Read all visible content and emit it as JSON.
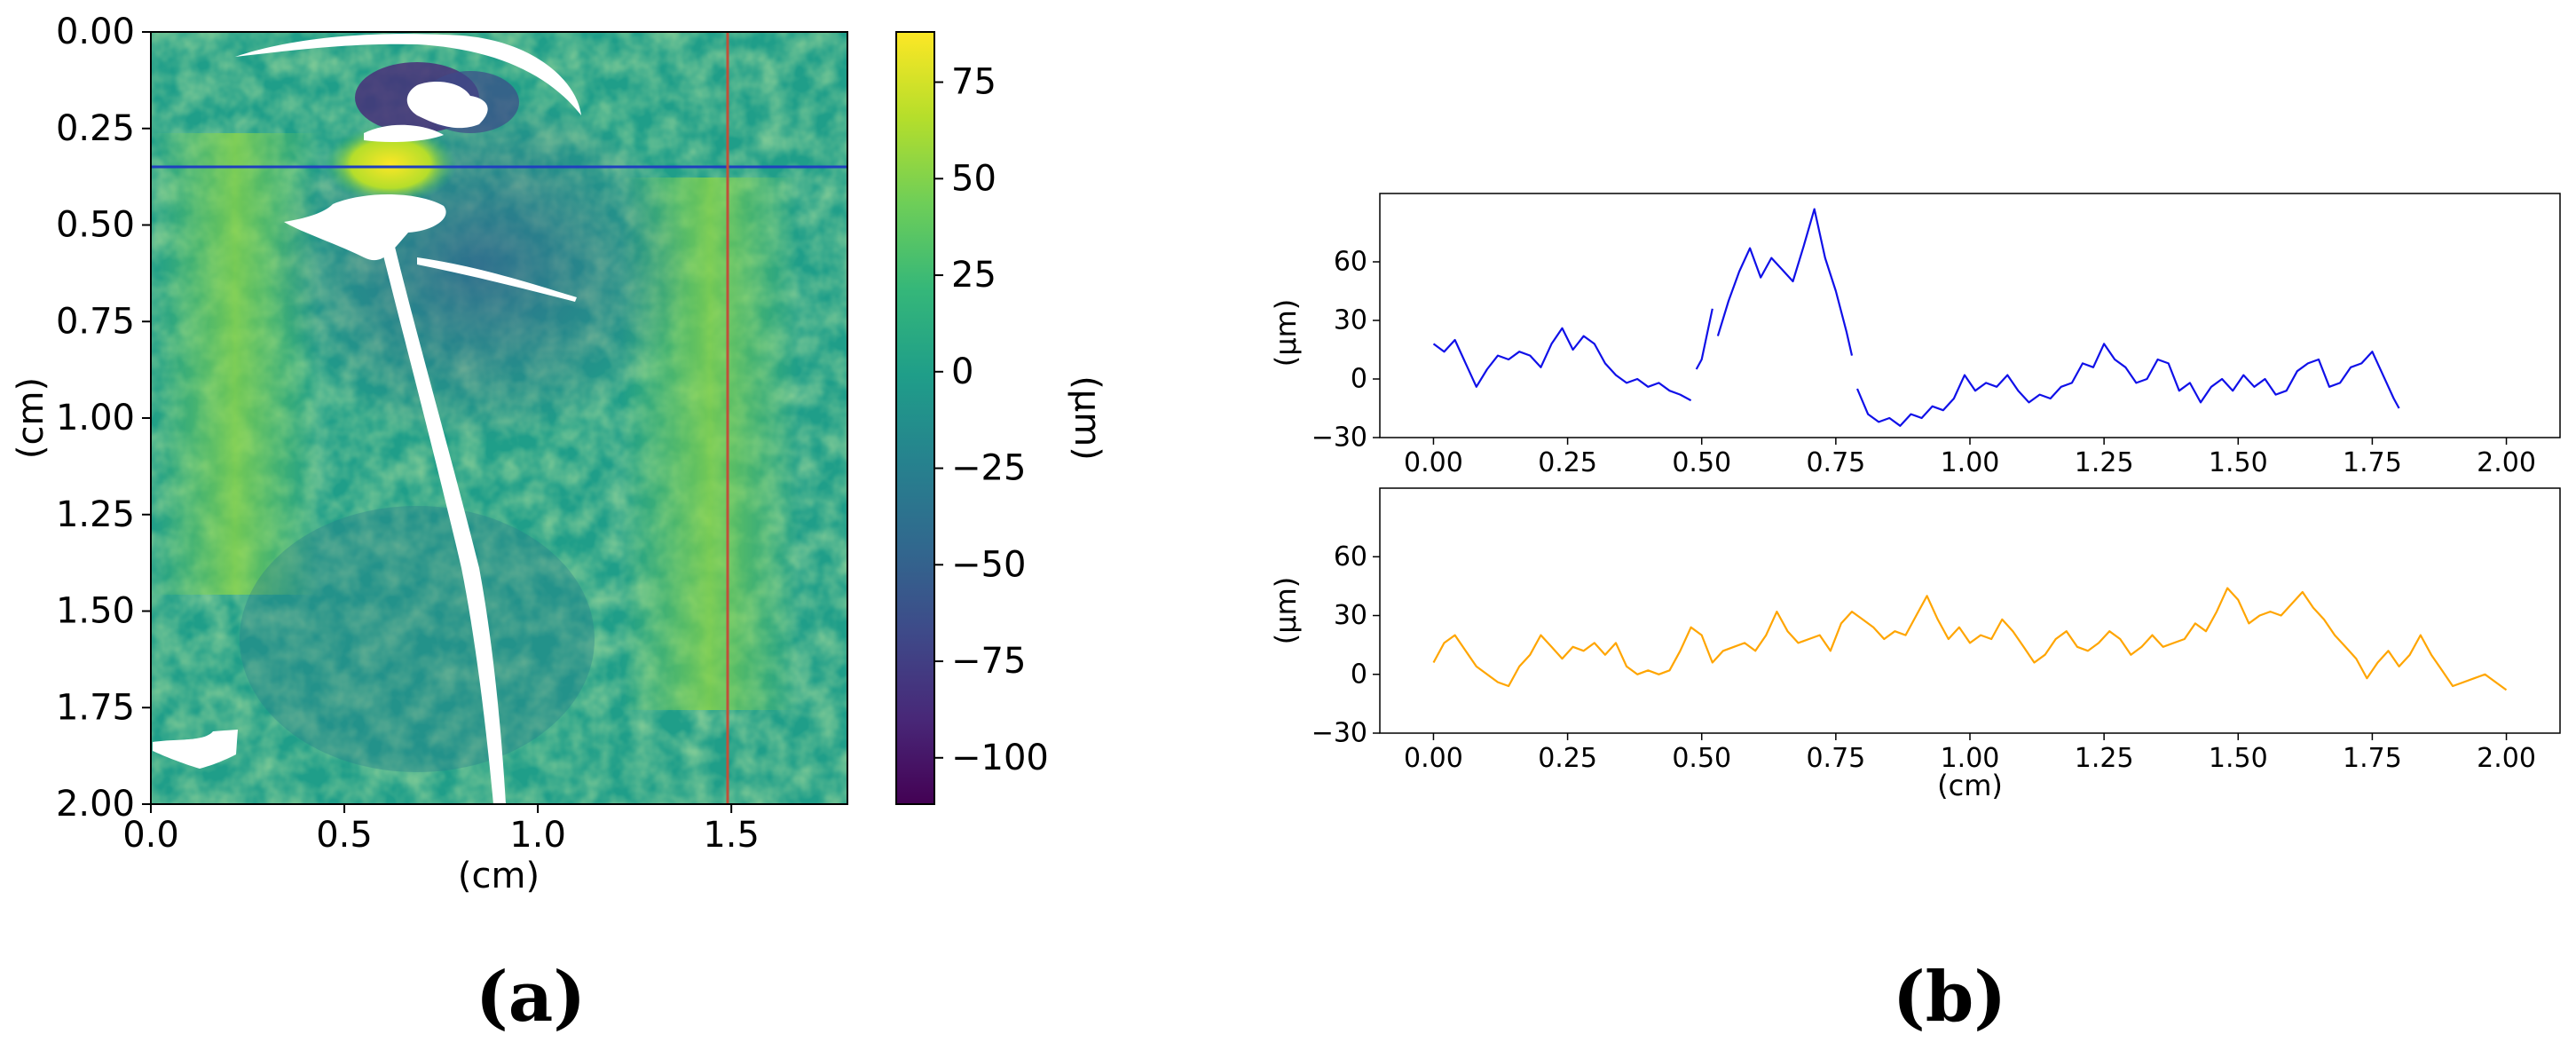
{
  "panel_labels": {
    "a": "(a)",
    "b": "(b)"
  },
  "colors": {
    "blue_series": "#1010e8",
    "orange_series": "#ffa500",
    "hline": "#1f3fbf",
    "vline": "#c0503a",
    "viridis": [
      "#440154",
      "#482878",
      "#3e4a89",
      "#31688e",
      "#26828e",
      "#1f9e89",
      "#35b779",
      "#6ece58",
      "#b5de2b",
      "#fde725"
    ]
  },
  "chart_data": [
    {
      "type": "heatmap",
      "xlabel": "(cm)",
      "ylabel": "(cm)",
      "xlim": [
        0.0,
        1.8
      ],
      "ylim": [
        2.0,
        0.0
      ],
      "x_ticks": [
        "0.0",
        "0.5",
        "1.0",
        "1.5"
      ],
      "y_ticks": [
        "0.00",
        "0.25",
        "0.50",
        "0.75",
        "1.00",
        "1.25",
        "1.50",
        "1.75",
        "2.00"
      ],
      "colormap": "viridis",
      "colorbar": {
        "label": "(μm)",
        "range": [
          -112,
          88
        ],
        "ticks": [
          "75",
          "50",
          "25",
          "0",
          "−25",
          "−50",
          "−75",
          "−100"
        ]
      },
      "horizontal_line_y": 0.35,
      "vertical_line_x": 1.5
    },
    {
      "type": "line",
      "ylabel": "(μm)",
      "xlim": [
        -0.1,
        2.1
      ],
      "ylim": [
        -30,
        95
      ],
      "x_ticks": [
        "0.00",
        "0.25",
        "0.50",
        "0.75",
        "1.00",
        "1.25",
        "1.50",
        "1.75",
        "2.00"
      ],
      "y_ticks": [
        "60",
        "30",
        "0",
        "−30"
      ],
      "series": [
        {
          "segments": [
            {
              "x": [
                0.0,
                0.02,
                0.04,
                0.06,
                0.08,
                0.1,
                0.12,
                0.14,
                0.16,
                0.18,
                0.2,
                0.22,
                0.24,
                0.26,
                0.28,
                0.3,
                0.32,
                0.34,
                0.36,
                0.38,
                0.4,
                0.42,
                0.44,
                0.46,
                0.48
              ],
              "y": [
                18,
                14,
                20,
                8,
                -4,
                5,
                12,
                10,
                14,
                12,
                6,
                18,
                26,
                15,
                22,
                18,
                8,
                2,
                -2,
                0,
                -4,
                -2,
                -6,
                -8,
                -11
              ]
            },
            {
              "x": [
                0.49,
                0.5,
                0.52
              ],
              "y": [
                5,
                10,
                36
              ]
            },
            {
              "x": [
                0.53,
                0.55,
                0.57,
                0.59,
                0.61,
                0.63,
                0.65,
                0.67,
                0.69,
                0.71,
                0.73,
                0.75,
                0.77,
                0.78
              ],
              "y": [
                22,
                40,
                55,
                67,
                52,
                62,
                56,
                50,
                68,
                87,
                62,
                45,
                24,
                12
              ]
            },
            {
              "x": [
                0.79,
                0.81,
                0.83,
                0.85,
                0.87,
                0.89,
                0.91,
                0.93,
                0.95,
                0.97,
                0.99,
                1.01,
                1.03,
                1.05,
                1.07,
                1.09,
                1.11,
                1.13,
                1.15,
                1.17,
                1.19,
                1.21,
                1.23,
                1.25,
                1.27,
                1.29,
                1.31,
                1.33,
                1.35,
                1.37,
                1.39,
                1.41,
                1.43,
                1.45,
                1.47,
                1.49,
                1.51,
                1.53,
                1.55,
                1.57,
                1.59,
                1.61,
                1.63,
                1.65,
                1.67,
                1.69,
                1.71,
                1.73,
                1.75,
                1.77,
                1.79,
                1.8
              ],
              "y": [
                -5,
                -18,
                -22,
                -20,
                -24,
                -18,
                -20,
                -14,
                -16,
                -10,
                2,
                -6,
                -2,
                -4,
                2,
                -6,
                -12,
                -8,
                -10,
                -4,
                -2,
                8,
                6,
                18,
                10,
                6,
                -2,
                0,
                10,
                8,
                -6,
                -2,
                -12,
                -4,
                0,
                -6,
                2,
                -4,
                0,
                -8,
                -6,
                4,
                8,
                10,
                -4,
                -2,
                6,
                8,
                14,
                2,
                -10,
                -15
              ]
            }
          ],
          "color": "#1010e8"
        }
      ]
    },
    {
      "type": "line",
      "xlabel": "(cm)",
      "ylabel": "(μm)",
      "xlim": [
        -0.1,
        2.1
      ],
      "ylim": [
        -30,
        95
      ],
      "x_ticks": [
        "0.00",
        "0.25",
        "0.50",
        "0.75",
        "1.00",
        "1.25",
        "1.50",
        "1.75",
        "2.00"
      ],
      "y_ticks": [
        "60",
        "30",
        "0",
        "−30"
      ],
      "series": [
        {
          "x": [
            0.0,
            0.02,
            0.04,
            0.06,
            0.08,
            0.1,
            0.12,
            0.14,
            0.16,
            0.18,
            0.2,
            0.22,
            0.24,
            0.26,
            0.28,
            0.3,
            0.32,
            0.34,
            0.36,
            0.38,
            0.4,
            0.42,
            0.44,
            0.46,
            0.48,
            0.5,
            0.52,
            0.54,
            0.56,
            0.58,
            0.6,
            0.62,
            0.64,
            0.66,
            0.68,
            0.7,
            0.72,
            0.74,
            0.76,
            0.78,
            0.8,
            0.82,
            0.84,
            0.86,
            0.88,
            0.9,
            0.92,
            0.94,
            0.96,
            0.98,
            1.0,
            1.02,
            1.04,
            1.06,
            1.08,
            1.1,
            1.12,
            1.14,
            1.16,
            1.18,
            1.2,
            1.22,
            1.24,
            1.26,
            1.28,
            1.3,
            1.32,
            1.34,
            1.36,
            1.38,
            1.4,
            1.42,
            1.44,
            1.46,
            1.48,
            1.5,
            1.52,
            1.54,
            1.56,
            1.58,
            1.6,
            1.62,
            1.64,
            1.66,
            1.68,
            1.7,
            1.72,
            1.74,
            1.76,
            1.78,
            1.8,
            1.82,
            1.84,
            1.86,
            1.88,
            1.9,
            1.92,
            1.94,
            1.96,
            1.98,
            2.0
          ],
          "y": [
            6,
            16,
            20,
            12,
            4,
            0,
            -4,
            -6,
            4,
            10,
            20,
            14,
            8,
            14,
            12,
            16,
            10,
            16,
            4,
            0,
            2,
            0,
            2,
            12,
            24,
            20,
            6,
            12,
            14,
            16,
            12,
            20,
            32,
            22,
            16,
            18,
            20,
            12,
            26,
            32,
            28,
            24,
            18,
            22,
            20,
            30,
            40,
            28,
            18,
            24,
            16,
            20,
            18,
            28,
            22,
            14,
            6,
            10,
            18,
            22,
            14,
            12,
            16,
            22,
            18,
            10,
            14,
            20,
            14,
            16,
            18,
            26,
            22,
            32,
            44,
            38,
            26,
            30,
            32,
            30,
            36,
            42,
            34,
            28,
            20,
            14,
            8,
            -2,
            6,
            12,
            4,
            10,
            20,
            10,
            2,
            -6,
            -4,
            -2,
            0,
            -4,
            -8
          ],
          "color": "#ffa500"
        }
      ]
    }
  ]
}
